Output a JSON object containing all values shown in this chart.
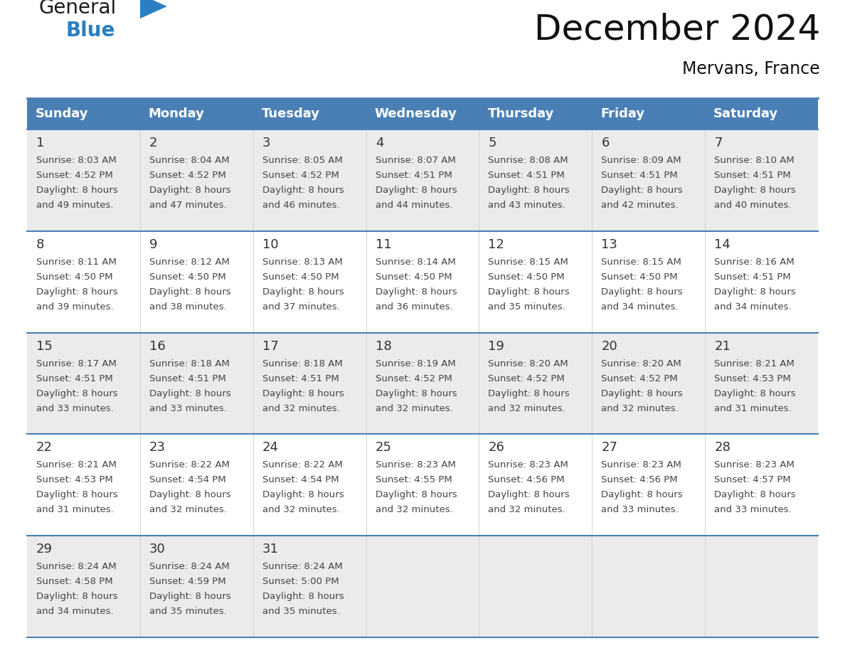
{
  "title": "December 2024",
  "subtitle": "Mervans, France",
  "header_color": "#4A7FB5",
  "header_text_color": "#FFFFFF",
  "row_bg_odd": "#EBEBEB",
  "row_bg_even": "#FFFFFF",
  "day_number_color": "#333333",
  "cell_text_color": "#444444",
  "border_color": "#4A7FB5",
  "days_of_week": [
    "Sunday",
    "Monday",
    "Tuesday",
    "Wednesday",
    "Thursday",
    "Friday",
    "Saturday"
  ],
  "calendar_data": [
    [
      {
        "day": 1,
        "sunrise": "8:03 AM",
        "sunset": "4:52 PM",
        "daylight_line1": "Daylight: 8 hours",
        "daylight_line2": "and 49 minutes."
      },
      {
        "day": 2,
        "sunrise": "8:04 AM",
        "sunset": "4:52 PM",
        "daylight_line1": "Daylight: 8 hours",
        "daylight_line2": "and 47 minutes."
      },
      {
        "day": 3,
        "sunrise": "8:05 AM",
        "sunset": "4:52 PM",
        "daylight_line1": "Daylight: 8 hours",
        "daylight_line2": "and 46 minutes."
      },
      {
        "day": 4,
        "sunrise": "8:07 AM",
        "sunset": "4:51 PM",
        "daylight_line1": "Daylight: 8 hours",
        "daylight_line2": "and 44 minutes."
      },
      {
        "day": 5,
        "sunrise": "8:08 AM",
        "sunset": "4:51 PM",
        "daylight_line1": "Daylight: 8 hours",
        "daylight_line2": "and 43 minutes."
      },
      {
        "day": 6,
        "sunrise": "8:09 AM",
        "sunset": "4:51 PM",
        "daylight_line1": "Daylight: 8 hours",
        "daylight_line2": "and 42 minutes."
      },
      {
        "day": 7,
        "sunrise": "8:10 AM",
        "sunset": "4:51 PM",
        "daylight_line1": "Daylight: 8 hours",
        "daylight_line2": "and 40 minutes."
      }
    ],
    [
      {
        "day": 8,
        "sunrise": "8:11 AM",
        "sunset": "4:50 PM",
        "daylight_line1": "Daylight: 8 hours",
        "daylight_line2": "and 39 minutes."
      },
      {
        "day": 9,
        "sunrise": "8:12 AM",
        "sunset": "4:50 PM",
        "daylight_line1": "Daylight: 8 hours",
        "daylight_line2": "and 38 minutes."
      },
      {
        "day": 10,
        "sunrise": "8:13 AM",
        "sunset": "4:50 PM",
        "daylight_line1": "Daylight: 8 hours",
        "daylight_line2": "and 37 minutes."
      },
      {
        "day": 11,
        "sunrise": "8:14 AM",
        "sunset": "4:50 PM",
        "daylight_line1": "Daylight: 8 hours",
        "daylight_line2": "and 36 minutes."
      },
      {
        "day": 12,
        "sunrise": "8:15 AM",
        "sunset": "4:50 PM",
        "daylight_line1": "Daylight: 8 hours",
        "daylight_line2": "and 35 minutes."
      },
      {
        "day": 13,
        "sunrise": "8:15 AM",
        "sunset": "4:50 PM",
        "daylight_line1": "Daylight: 8 hours",
        "daylight_line2": "and 34 minutes."
      },
      {
        "day": 14,
        "sunrise": "8:16 AM",
        "sunset": "4:51 PM",
        "daylight_line1": "Daylight: 8 hours",
        "daylight_line2": "and 34 minutes."
      }
    ],
    [
      {
        "day": 15,
        "sunrise": "8:17 AM",
        "sunset": "4:51 PM",
        "daylight_line1": "Daylight: 8 hours",
        "daylight_line2": "and 33 minutes."
      },
      {
        "day": 16,
        "sunrise": "8:18 AM",
        "sunset": "4:51 PM",
        "daylight_line1": "Daylight: 8 hours",
        "daylight_line2": "and 33 minutes."
      },
      {
        "day": 17,
        "sunrise": "8:18 AM",
        "sunset": "4:51 PM",
        "daylight_line1": "Daylight: 8 hours",
        "daylight_line2": "and 32 minutes."
      },
      {
        "day": 18,
        "sunrise": "8:19 AM",
        "sunset": "4:52 PM",
        "daylight_line1": "Daylight: 8 hours",
        "daylight_line2": "and 32 minutes."
      },
      {
        "day": 19,
        "sunrise": "8:20 AM",
        "sunset": "4:52 PM",
        "daylight_line1": "Daylight: 8 hours",
        "daylight_line2": "and 32 minutes."
      },
      {
        "day": 20,
        "sunrise": "8:20 AM",
        "sunset": "4:52 PM",
        "daylight_line1": "Daylight: 8 hours",
        "daylight_line2": "and 32 minutes."
      },
      {
        "day": 21,
        "sunrise": "8:21 AM",
        "sunset": "4:53 PM",
        "daylight_line1": "Daylight: 8 hours",
        "daylight_line2": "and 31 minutes."
      }
    ],
    [
      {
        "day": 22,
        "sunrise": "8:21 AM",
        "sunset": "4:53 PM",
        "daylight_line1": "Daylight: 8 hours",
        "daylight_line2": "and 31 minutes."
      },
      {
        "day": 23,
        "sunrise": "8:22 AM",
        "sunset": "4:54 PM",
        "daylight_line1": "Daylight: 8 hours",
        "daylight_line2": "and 32 minutes."
      },
      {
        "day": 24,
        "sunrise": "8:22 AM",
        "sunset": "4:54 PM",
        "daylight_line1": "Daylight: 8 hours",
        "daylight_line2": "and 32 minutes."
      },
      {
        "day": 25,
        "sunrise": "8:23 AM",
        "sunset": "4:55 PM",
        "daylight_line1": "Daylight: 8 hours",
        "daylight_line2": "and 32 minutes."
      },
      {
        "day": 26,
        "sunrise": "8:23 AM",
        "sunset": "4:56 PM",
        "daylight_line1": "Daylight: 8 hours",
        "daylight_line2": "and 32 minutes."
      },
      {
        "day": 27,
        "sunrise": "8:23 AM",
        "sunset": "4:56 PM",
        "daylight_line1": "Daylight: 8 hours",
        "daylight_line2": "and 33 minutes."
      },
      {
        "day": 28,
        "sunrise": "8:23 AM",
        "sunset": "4:57 PM",
        "daylight_line1": "Daylight: 8 hours",
        "daylight_line2": "and 33 minutes."
      }
    ],
    [
      {
        "day": 29,
        "sunrise": "8:24 AM",
        "sunset": "4:58 PM",
        "daylight_line1": "Daylight: 8 hours",
        "daylight_line2": "and 34 minutes."
      },
      {
        "day": 30,
        "sunrise": "8:24 AM",
        "sunset": "4:59 PM",
        "daylight_line1": "Daylight: 8 hours",
        "daylight_line2": "and 35 minutes."
      },
      {
        "day": 31,
        "sunrise": "8:24 AM",
        "sunset": "5:00 PM",
        "daylight_line1": "Daylight: 8 hours",
        "daylight_line2": "and 35 minutes."
      },
      null,
      null,
      null,
      null
    ]
  ],
  "logo_text_general": "General",
  "logo_text_blue": "Blue",
  "logo_color_general": "#1a1a1a",
  "logo_color_blue": "#2B7EC1",
  "logo_triangle_color": "#2B7EC1",
  "fig_width": 11.88,
  "fig_height": 9.18,
  "dpi": 100
}
